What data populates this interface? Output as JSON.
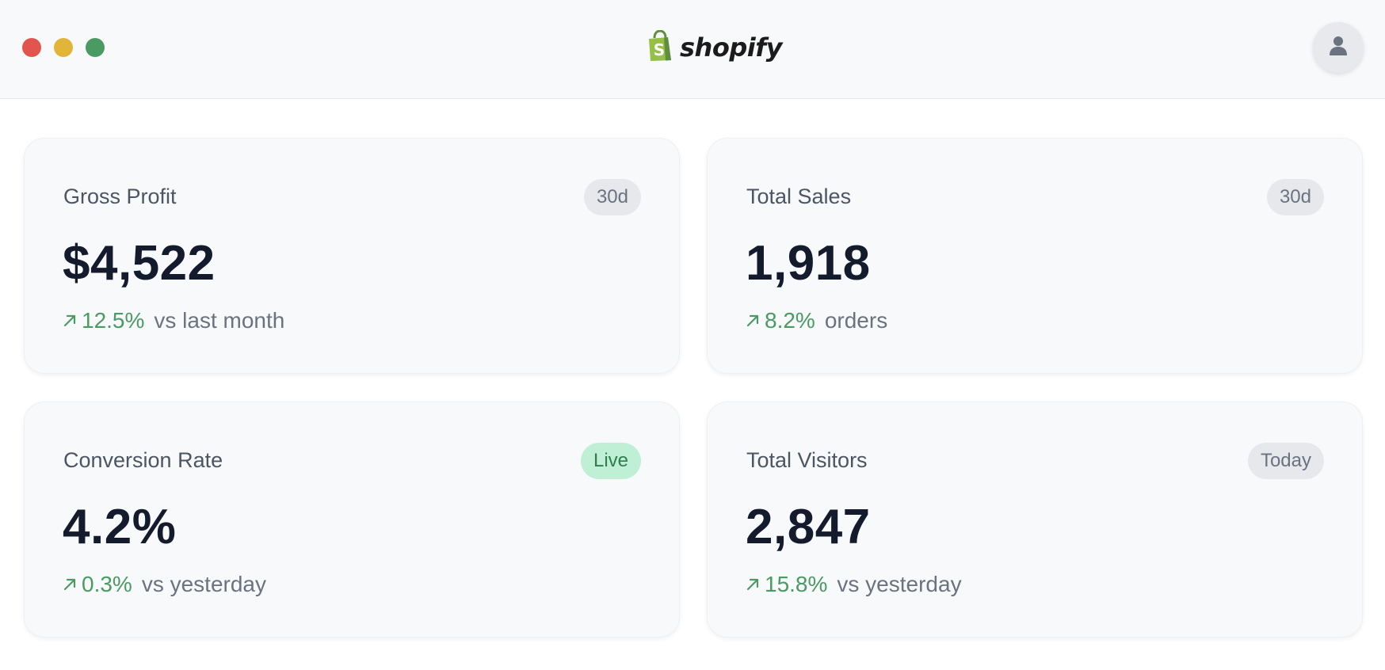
{
  "window": {
    "brand_name": "shopify",
    "colors": {
      "close": "#e2554f",
      "minimize": "#e2b43a",
      "maximize": "#4a9a63",
      "accent_green": "#4a9a63"
    },
    "icons": {
      "brand": "shopify-bag-icon",
      "profile": "user-icon"
    }
  },
  "cards": [
    {
      "label": "Gross Profit",
      "badge": "30d",
      "value": "$4,522",
      "change": "12.5%",
      "context": "vs last month",
      "trend": "up"
    },
    {
      "label": "Total Sales",
      "badge": "30d",
      "value": "1,918",
      "change": "8.2%",
      "context": "orders",
      "trend": "up"
    },
    {
      "label": "Conversion Rate",
      "badge": "Live",
      "value": "4.2%",
      "change": "0.3%",
      "context": "vs yesterday",
      "trend": "up"
    },
    {
      "label": "Total Visitors",
      "badge": "Today",
      "value": "2,847",
      "change": "15.8%",
      "context": "vs yesterday",
      "trend": "up"
    }
  ]
}
